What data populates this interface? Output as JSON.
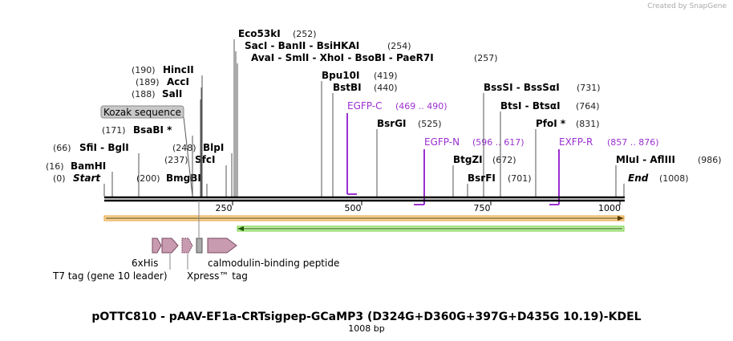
{
  "header": {
    "credit": "Created by SnapGene"
  },
  "title": "pOTTC810 - pAAV-EF1a-CRTsigpep-GCaMP3 (D324G+D360G+397G+D435G 10.19)-KDEL",
  "subtitle": "1008 bp",
  "enzymes": [
    {
      "label": "Start",
      "site": "(0)"
    },
    {
      "label": "BamHI",
      "site": "(16)"
    },
    {
      "label": "SfiI  -  BglI",
      "site": "(66)"
    },
    {
      "label": "BsaBI *",
      "site": "(171)"
    },
    {
      "label": "HincII",
      "site": "(190)"
    },
    {
      "label": "AccI",
      "site": "(189)"
    },
    {
      "label": "SalI",
      "site": "(188)"
    },
    {
      "label": "BmgBI",
      "site": "(200)"
    },
    {
      "label": "SfcI",
      "site": "(237)"
    },
    {
      "label": "BlpI",
      "site": "(248)"
    },
    {
      "label": "Eco53kI",
      "site": "(252)"
    },
    {
      "label": "SacI  -  BanII  -  BsiHKAI",
      "site": "(254)"
    },
    {
      "label": "AvaI  -  SmlI  -  XhoI  -  BsoBI  -  PaeR7I",
      "site": "(257)"
    },
    {
      "label": "Bpu10I",
      "site": "(419)"
    },
    {
      "label": "BstBI",
      "site": "(440)"
    },
    {
      "label": "BsrGI",
      "site": "(525)"
    },
    {
      "label": "BtgZI",
      "site": "(672)"
    },
    {
      "label": "BsrFI",
      "site": "(701)"
    },
    {
      "label": "BssSI  -  BssSαI",
      "site": "(731)"
    },
    {
      "label": "BtsI  -  BtsαI",
      "site": "(764)"
    },
    {
      "label": "PfoI *",
      "site": "(831)"
    },
    {
      "label": "MluI  -  AflIII",
      "site": "(986)"
    },
    {
      "label": "End",
      "site": "(1008)"
    }
  ],
  "primers": [
    {
      "label": "EGFP-C",
      "site": "(469 .. 490)"
    },
    {
      "label": "EGFP-N",
      "site": "(596 .. 617)"
    },
    {
      "label": "EXFP-R",
      "site": "(857 .. 876)"
    }
  ],
  "features": {
    "kozak": "Kozak sequence",
    "his": "6xHis",
    "t7": "T7 tag (gene 10 leader)",
    "xpress": "Xpress™ tag",
    "cbp": "calmodulin-binding peptide"
  },
  "ruler": [
    "250",
    "500",
    "750",
    "1000"
  ]
}
